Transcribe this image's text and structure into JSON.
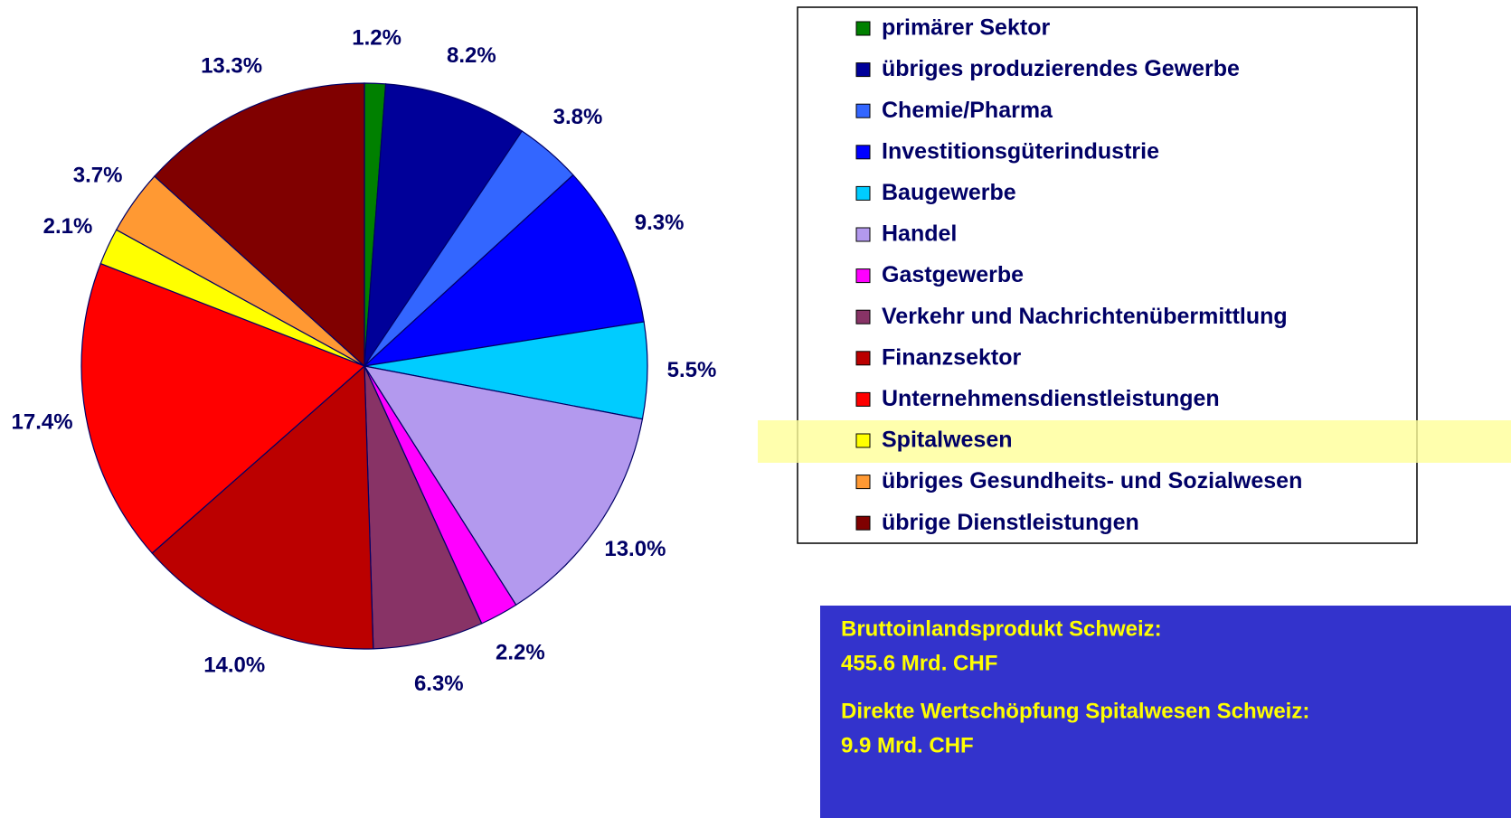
{
  "chart_data": {
    "type": "pie",
    "categories": [
      "primärer Sektor",
      "übriges produzierendes Gewerbe",
      "Chemie/Pharma",
      "Investitionsgüterindustrie",
      "Baugewerbe",
      "Handel",
      "Gastgewerbe",
      "Verkehr und Nachrichtenübermittlung",
      "Finanzsektor",
      "Unternehmensdienstleistungen",
      "Spitalwesen",
      "übriges Gesundheits- und Sozialwesen",
      "übrige Dienstleistungen"
    ],
    "values": [
      1.2,
      8.2,
      3.8,
      9.3,
      5.5,
      13.0,
      2.2,
      6.3,
      14.0,
      17.4,
      2.1,
      3.7,
      13.3
    ],
    "value_labels": [
      "1.2%",
      "8.2%",
      "3.8%",
      "9.3%",
      "5.5%",
      "13.0%",
      "2.2%",
      "6.3%",
      "14.0%",
      "17.4%",
      "2.1%",
      "3.7%",
      "13.3%"
    ],
    "colors": [
      "#008000",
      "#000099",
      "#3366ff",
      "#0000ff",
      "#00ccff",
      "#b399ee",
      "#ff00ff",
      "#883366",
      "#bb0000",
      "#ff0000",
      "#ffff00",
      "#ff9933",
      "#800000"
    ],
    "highlighted_category": 10,
    "notes": [
      "Bruttoinlandsprodukt Schweiz:",
      "455.6  Mrd. CHF",
      "Direkte Wertschöpfung Spitalwesen Schweiz:",
      "9.9  Mrd. CHF"
    ]
  }
}
